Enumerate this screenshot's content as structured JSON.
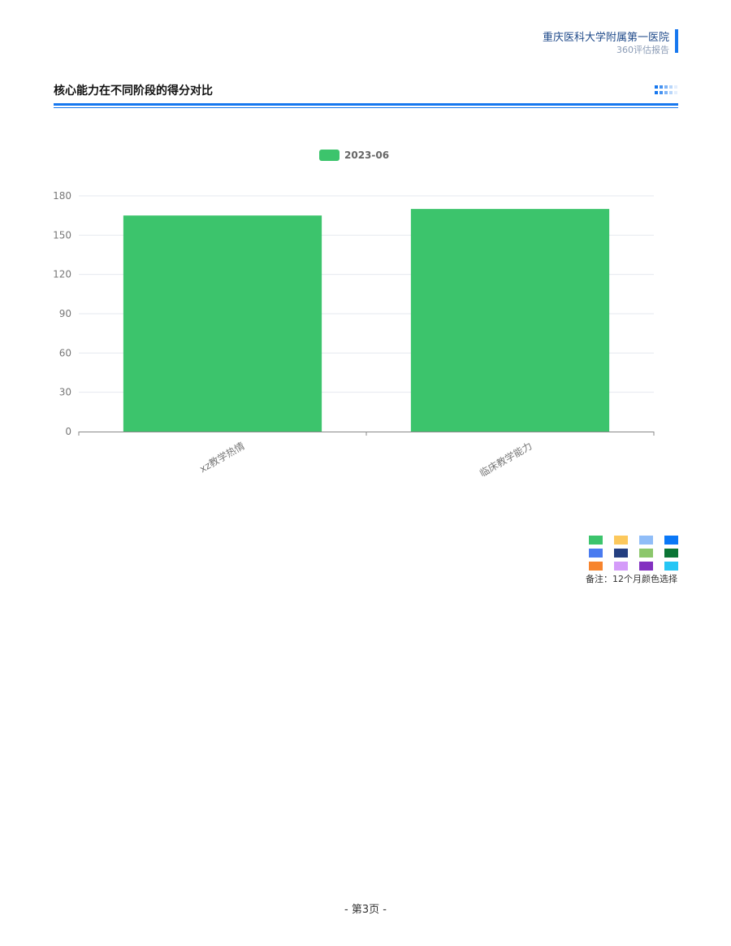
{
  "header": {
    "hospital": "重庆医科大学附属第一医院",
    "report": "360评估报告",
    "accent": "#1677ee"
  },
  "section": {
    "title": "核心能力在不同阶段的得分对比"
  },
  "chart_data": {
    "type": "bar",
    "categories": [
      "xz教学热情",
      "临床教学能力"
    ],
    "series": [
      {
        "name": "2023-06",
        "values": [
          165,
          170
        ],
        "color": "#3cc46c"
      }
    ],
    "ylim": [
      0,
      180
    ],
    "yticks": [
      0,
      30,
      60,
      90,
      120,
      150,
      180
    ],
    "grid": true,
    "legend": "top-center"
  },
  "palette": {
    "colors": [
      "#3cc46c",
      "#fcc85c",
      "#90bdf8",
      "#0a78f7",
      "#4a7bf0",
      "#243f80",
      "#8cc76c",
      "#0b7535",
      "#f7842d",
      "#d49bf9",
      "#8230c0",
      "#25c6f5"
    ],
    "note": "备注：12个月颜色选择"
  },
  "footer": {
    "page": "- 第3页 -"
  }
}
